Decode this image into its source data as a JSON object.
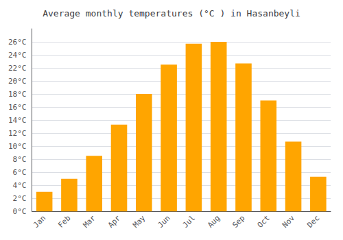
{
  "chart_data": {
    "type": "bar",
    "title": "Average monthly temperatures (°C ) in Hasanbeyli",
    "categories": [
      "Jan",
      "Feb",
      "Mar",
      "Apr",
      "May",
      "Jun",
      "Jul",
      "Aug",
      "Sep",
      "Oct",
      "Nov",
      "Dec"
    ],
    "values": [
      3,
      5,
      8.5,
      13.3,
      18,
      22.5,
      25.7,
      26,
      22.7,
      17,
      10.7,
      5.3
    ],
    "color": "#FFA500",
    "ylim": [
      0,
      28
    ],
    "yticks": [
      {
        "value": 0,
        "label": "0°C"
      },
      {
        "value": 2,
        "label": "2°C"
      },
      {
        "value": 4,
        "label": "4°C"
      },
      {
        "value": 6,
        "label": "6°C"
      },
      {
        "value": 8,
        "label": "8°C"
      },
      {
        "value": 10,
        "label": "10°C"
      },
      {
        "value": 12,
        "label": "12°C"
      },
      {
        "value": 14,
        "label": "14°C"
      },
      {
        "value": 16,
        "label": "16°C"
      },
      {
        "value": 18,
        "label": "18°C"
      },
      {
        "value": 20,
        "label": "20°C"
      },
      {
        "value": 22,
        "label": "22°C"
      },
      {
        "value": 24,
        "label": "24°C"
      },
      {
        "value": 26,
        "label": "26°C"
      }
    ],
    "grid": true
  }
}
